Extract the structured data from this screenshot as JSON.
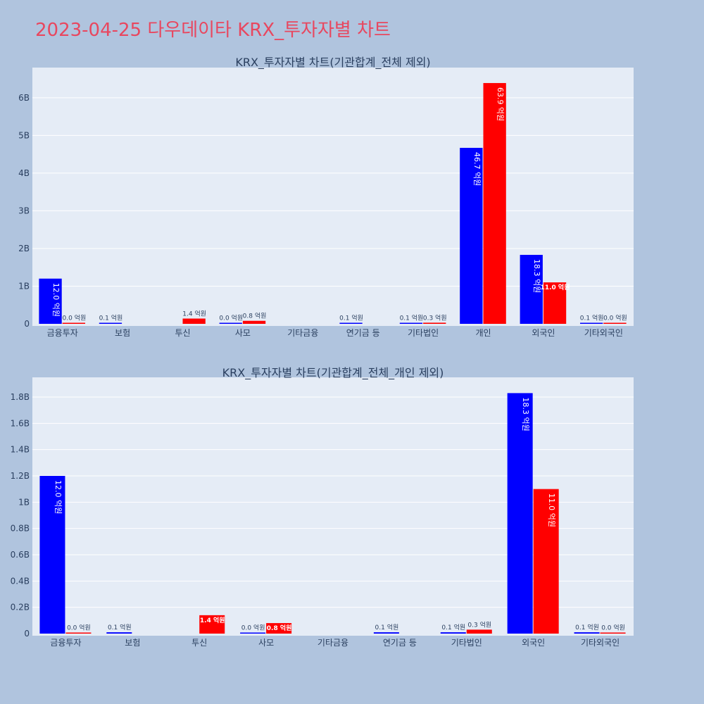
{
  "title": "2023-04-25 다우데이타 KRX_투자자별 차트",
  "colors": {
    "title": "#e8475f",
    "buy": "#0000ff",
    "sell": "#ff0000",
    "background": "#b0c4de",
    "plot": "#e5ecf6"
  },
  "chart_data": [
    {
      "type": "bar",
      "title": "KRX_투자자별 차트(기관합계_전체 제외)",
      "categories": [
        "금융투자",
        "보험",
        "투신",
        "사모",
        "기타금융",
        "연기금 등",
        "기타법인",
        "개인",
        "외국인",
        "기타외국인"
      ],
      "series": [
        {
          "color": "#0000ff",
          "values": [
            1200000000,
            10000000,
            0,
            0,
            0,
            10000000,
            10000000,
            4670000000,
            1830000000,
            10000000
          ],
          "labels": [
            "12.0 억원",
            "0.1 억원",
            "",
            "0.0 억원",
            "",
            "0.1 억원",
            "0.1 억원",
            "46.7 억원",
            "18.3 억원",
            "0.1 억원"
          ]
        },
        {
          "color": "#ff0000",
          "values": [
            0,
            0,
            140000000,
            80000000,
            0,
            0,
            30000000,
            6390000000,
            1100000000,
            0
          ],
          "labels": [
            "0.0 억원",
            "",
            "1.4 억원",
            "0.8 억원",
            "",
            "",
            "0.3 억원",
            "63.9 억원",
            "11.0 억원",
            "0.0 억원"
          ]
        }
      ],
      "ylim": [
        0,
        6800000000
      ],
      "yticks": [
        0,
        1000000000,
        2000000000,
        3000000000,
        4000000000,
        5000000000,
        6000000000
      ],
      "ytick_labels": [
        "0",
        "1B",
        "2B",
        "3B",
        "4B",
        "5B",
        "6B"
      ],
      "grid": true
    },
    {
      "type": "bar",
      "title": "KRX_투자자별 차트(기관합계_전체_개인 제외)",
      "categories": [
        "금융투자",
        "보험",
        "투신",
        "사모",
        "기타금융",
        "연기금 등",
        "기타법인",
        "외국인",
        "기타외국인"
      ],
      "series": [
        {
          "color": "#0000ff",
          "values": [
            1200000000,
            10000000,
            0,
            0,
            0,
            10000000,
            10000000,
            1830000000,
            10000000
          ],
          "labels": [
            "12.0 억원",
            "0.1 억원",
            "",
            "0.0 억원",
            "",
            "0.1 억원",
            "0.1 억원",
            "18.3 억원",
            "0.1 억원"
          ]
        },
        {
          "color": "#ff0000",
          "values": [
            0,
            0,
            140000000,
            80000000,
            0,
            0,
            30000000,
            1100000000,
            0
          ],
          "labels": [
            "0.0 억원",
            "",
            "1.4 억원",
            "0.8 억원",
            "",
            "",
            "0.3 억원",
            "11.0 억원",
            "0.0 억원"
          ]
        }
      ],
      "ylim": [
        0,
        1950000000
      ],
      "yticks": [
        0,
        200000000,
        400000000,
        600000000,
        800000000,
        1000000000,
        1200000000,
        1400000000,
        1600000000,
        1800000000
      ],
      "ytick_labels": [
        "0",
        "0.2B",
        "0.4B",
        "0.6B",
        "0.8B",
        "1B",
        "1.2B",
        "1.4B",
        "1.6B",
        "1.8B"
      ],
      "grid": true
    }
  ]
}
